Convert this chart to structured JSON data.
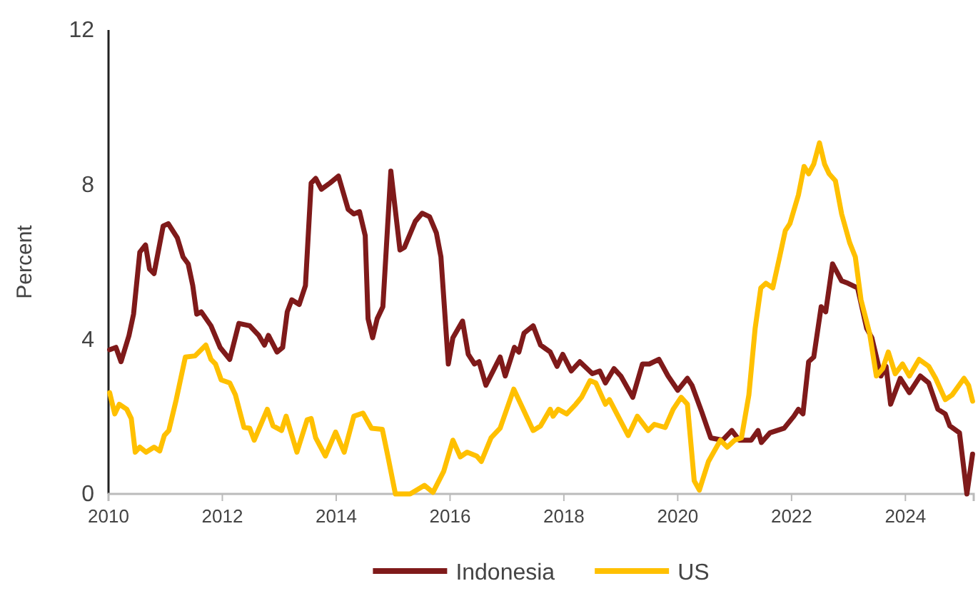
{
  "chart_data": {
    "type": "line",
    "ylabel": "Percent",
    "xlim": [
      2010,
      2025.2
    ],
    "xticks": [
      2010,
      2012,
      2014,
      2016,
      2018,
      2020,
      2022,
      2024
    ],
    "ylim": [
      0,
      12
    ],
    "yticks": [
      0,
      4,
      8,
      12
    ],
    "grid": false,
    "legend": "bottom",
    "marker": "none",
    "line_style": "solid",
    "series": [
      {
        "name": "Indonesia",
        "color": "#7f1a1a",
        "x": [
          2010.02,
          2010.13,
          2010.22,
          2010.36,
          2010.44,
          2010.55,
          2010.65,
          2010.72,
          2010.8,
          2010.96,
          2011.05,
          2011.21,
          2011.31,
          2011.4,
          2011.48,
          2011.55,
          2011.63,
          2011.8,
          2011.96,
          2012.13,
          2012.29,
          2012.48,
          2012.64,
          2012.74,
          2012.81,
          2012.96,
          2013.06,
          2013.14,
          2013.22,
          2013.35,
          2013.46,
          2013.56,
          2013.64,
          2013.74,
          2013.89,
          2014.04,
          2014.21,
          2014.31,
          2014.41,
          2014.51,
          2014.56,
          2014.64,
          2014.72,
          2014.82,
          2014.96,
          2015.12,
          2015.2,
          2015.39,
          2015.51,
          2015.64,
          2015.76,
          2015.84,
          2015.97,
          2016.05,
          2016.22,
          2016.32,
          2016.43,
          2016.51,
          2016.63,
          2016.88,
          2016.97,
          2017.13,
          2017.21,
          2017.3,
          2017.46,
          2017.59,
          2017.76,
          2017.88,
          2017.98,
          2018.13,
          2018.28,
          2018.5,
          2018.63,
          2018.73,
          2018.88,
          2019.0,
          2019.21,
          2019.38,
          2019.5,
          2019.67,
          2019.83,
          2020.0,
          2020.17,
          2020.25,
          2020.42,
          2020.58,
          2020.79,
          2020.95,
          2021.08,
          2021.29,
          2021.41,
          2021.47,
          2021.62,
          2021.87,
          2022.04,
          2022.12,
          2022.2,
          2022.3,
          2022.39,
          2022.52,
          2022.6,
          2022.72,
          2022.88,
          2022.99,
          2023.16,
          2023.32,
          2023.41,
          2023.57,
          2023.66,
          2023.74,
          2023.91,
          2024.07,
          2024.26,
          2024.41,
          2024.57,
          2024.7,
          2024.78,
          2024.95,
          2025.08,
          2025.18
        ],
        "values": [
          3.73,
          3.79,
          3.42,
          4.1,
          4.65,
          6.25,
          6.44,
          5.82,
          5.7,
          6.93,
          6.99,
          6.62,
          6.13,
          5.95,
          5.39,
          4.65,
          4.71,
          4.35,
          3.79,
          3.48,
          4.41,
          4.35,
          4.1,
          3.85,
          4.1,
          3.67,
          3.79,
          4.71,
          5.02,
          4.9,
          5.39,
          8.04,
          8.16,
          7.88,
          8.04,
          8.22,
          7.36,
          7.24,
          7.3,
          6.68,
          4.53,
          4.04,
          4.53,
          4.84,
          8.35,
          6.31,
          6.38,
          7.05,
          7.26,
          7.17,
          6.75,
          6.13,
          3.36,
          4.04,
          4.47,
          3.61,
          3.36,
          3.42,
          2.81,
          3.54,
          3.05,
          3.79,
          3.67,
          4.16,
          4.35,
          3.85,
          3.67,
          3.3,
          3.61,
          3.18,
          3.42,
          3.11,
          3.18,
          2.87,
          3.24,
          3.05,
          2.5,
          3.36,
          3.36,
          3.48,
          3.05,
          2.68,
          2.99,
          2.81,
          2.13,
          1.45,
          1.39,
          1.64,
          1.39,
          1.39,
          1.64,
          1.33,
          1.58,
          1.7,
          2.01,
          2.19,
          2.07,
          3.42,
          3.54,
          4.84,
          4.71,
          5.95,
          5.51,
          5.45,
          5.33,
          4.28,
          4.04,
          3.05,
          3.3,
          2.32,
          2.99,
          2.62,
          3.05,
          2.87,
          2.19,
          2.07,
          1.76,
          1.58,
          0,
          1.03
        ]
      },
      {
        "name": "US",
        "color": "#ffc000",
        "x": [
          2010.02,
          2010.11,
          2010.19,
          2010.32,
          2010.4,
          2010.47,
          2010.55,
          2010.66,
          2010.8,
          2010.9,
          2010.98,
          2011.06,
          2011.19,
          2011.35,
          2011.52,
          2011.71,
          2011.8,
          2011.88,
          2011.98,
          2012.13,
          2012.23,
          2012.38,
          2012.48,
          2012.56,
          2012.79,
          2012.89,
          2013.04,
          2013.12,
          2013.31,
          2013.49,
          2013.56,
          2013.64,
          2013.81,
          2013.99,
          2014.14,
          2014.31,
          2014.47,
          2014.62,
          2014.81,
          2014.91,
          2015.04,
          2015.3,
          2015.55,
          2015.7,
          2015.89,
          2016.05,
          2016.18,
          2016.3,
          2016.47,
          2016.55,
          2016.72,
          2016.88,
          2017.12,
          2017.46,
          2017.59,
          2017.76,
          2017.81,
          2017.9,
          2018.05,
          2018.21,
          2018.31,
          2018.46,
          2018.56,
          2018.73,
          2018.8,
          2019.13,
          2019.29,
          2019.48,
          2019.59,
          2019.78,
          2019.92,
          2020.06,
          2020.17,
          2020.29,
          2020.38,
          2020.54,
          2020.75,
          2020.87,
          2021.0,
          2021.12,
          2021.25,
          2021.36,
          2021.46,
          2021.55,
          2021.67,
          2021.79,
          2021.89,
          2021.97,
          2022.12,
          2022.22,
          2022.3,
          2022.39,
          2022.49,
          2022.58,
          2022.66,
          2022.77,
          2022.88,
          2023.02,
          2023.12,
          2023.22,
          2023.37,
          2023.49,
          2023.6,
          2023.7,
          2023.82,
          2023.95,
          2024.07,
          2024.24,
          2024.41,
          2024.53,
          2024.7,
          2024.82,
          2025.03,
          2025.11,
          2025.18
        ],
        "values": [
          2.62,
          2.07,
          2.32,
          2.19,
          1.95,
          1.08,
          1.21,
          1.08,
          1.21,
          1.11,
          1.51,
          1.64,
          2.44,
          3.54,
          3.57,
          3.85,
          3.48,
          3.36,
          2.95,
          2.87,
          2.56,
          1.72,
          1.7,
          1.39,
          2.19,
          1.76,
          1.64,
          2.01,
          1.08,
          1.92,
          1.95,
          1.45,
          0.98,
          1.6,
          1.08,
          2.01,
          2.09,
          1.7,
          1.67,
          0.96,
          0,
          0,
          0.22,
          0.04,
          0.59,
          1.39,
          0.96,
          1.08,
          0.98,
          0.84,
          1.45,
          1.7,
          2.71,
          1.64,
          1.76,
          2.19,
          2.01,
          2.19,
          2.07,
          2.32,
          2.5,
          2.93,
          2.87,
          2.32,
          2.44,
          1.51,
          2.01,
          1.64,
          1.8,
          1.72,
          2.19,
          2.5,
          2.32,
          0.34,
          0.1,
          0.84,
          1.39,
          1.21,
          1.39,
          1.45,
          2.56,
          4.28,
          5.33,
          5.45,
          5.33,
          6.13,
          6.81,
          6.99,
          7.73,
          8.47,
          8.28,
          8.53,
          9.08,
          8.53,
          8.28,
          8.1,
          7.24,
          6.5,
          6.13,
          5.02,
          4.16,
          3.05,
          3.24,
          3.67,
          3.11,
          3.36,
          3.05,
          3.48,
          3.3,
          2.99,
          2.44,
          2.56,
          2.99,
          2.81,
          2.4
        ]
      }
    ]
  }
}
